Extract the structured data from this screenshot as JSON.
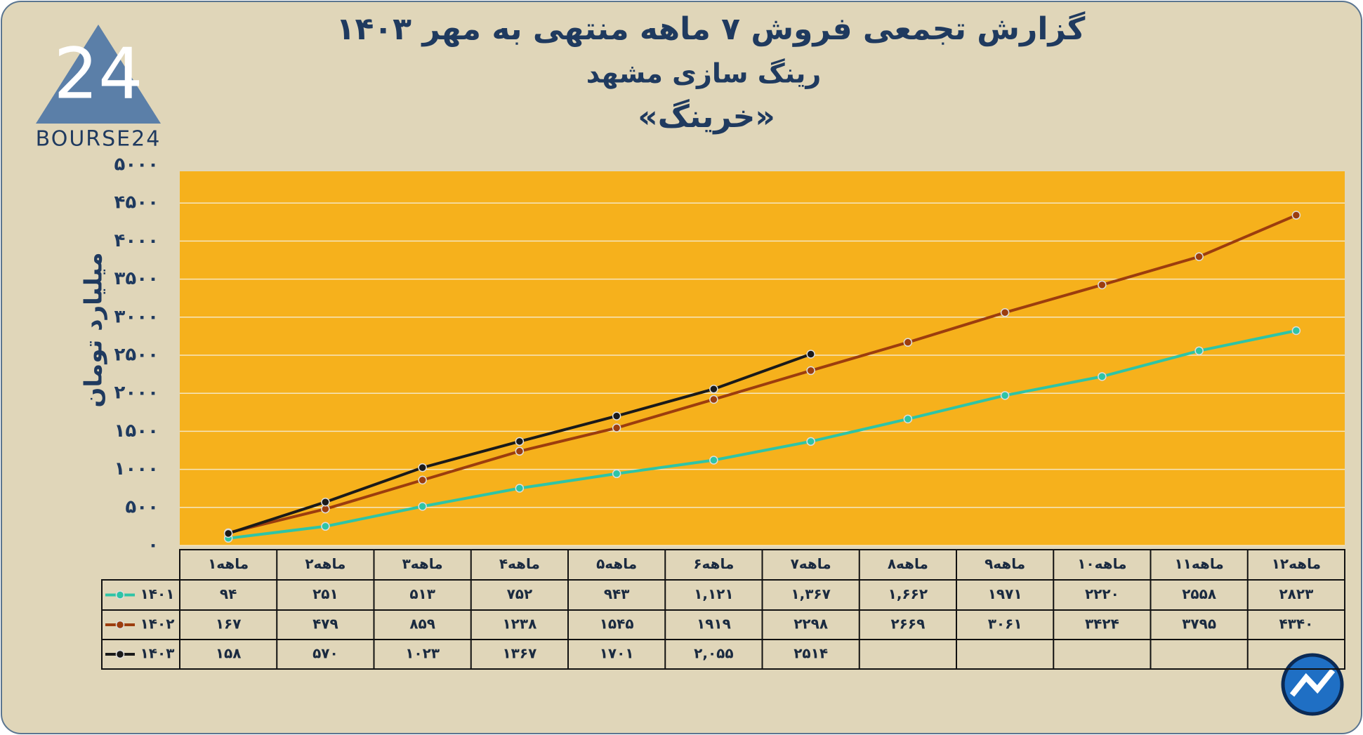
{
  "logo": {
    "mark": "24",
    "text": "BOURSE24"
  },
  "chart_data": {
    "type": "line",
    "title": "گزارش تجمعی فروش ۷ ماهه منتهی به مهر ۱۴۰۳",
    "subtitle": "رینگ سازی مشهد",
    "company": "«خرینگ»",
    "y_label": "میلیارد تومان",
    "categories": [
      "۱ماهه",
      "۲ماهه",
      "۳ماهه",
      "۴ماهه",
      "۵ماهه",
      "۶ماهه",
      "۷ماهه",
      "۸ماهه",
      "۹ماهه",
      "۱۰ماهه",
      "۱۱ماهه",
      "۱۲ماهه"
    ],
    "series": [
      {
        "name": "۱۴۰۱",
        "color": "#2ec4a6",
        "values": [
          94,
          251,
          513,
          752,
          943,
          1121,
          1367,
          1662,
          1971,
          2220,
          2558,
          2823
        ],
        "value_labels": [
          "۹۴",
          "۲۵۱",
          "۵۱۳",
          "۷۵۲",
          "۹۴۳",
          "۱,۱۲۱",
          "۱,۳۶۷",
          "۱,۶۶۲",
          "۱۹۷۱",
          "۲۲۲۰",
          "۲۵۵۸",
          "۲۸۲۳"
        ]
      },
      {
        "name": "۱۴۰۲",
        "color": "#9c3d0e",
        "values": [
          167,
          479,
          859,
          1238,
          1545,
          1919,
          2298,
          2669,
          3061,
          3424,
          3795,
          4340
        ],
        "value_labels": [
          "۱۶۷",
          "۴۷۹",
          "۸۵۹",
          "۱۲۳۸",
          "۱۵۴۵",
          "۱۹۱۹",
          "۲۲۹۸",
          "۲۶۶۹",
          "۳۰۶۱",
          "۳۴۲۴",
          "۳۷۹۵",
          "۴۳۴۰"
        ]
      },
      {
        "name": "۱۴۰۳",
        "color": "#1a1a1a",
        "values": [
          158,
          570,
          1023,
          1367,
          1701,
          2055,
          2514,
          null,
          null,
          null,
          null,
          null
        ],
        "value_labels": [
          "۱۵۸",
          "۵۷۰",
          "۱۰۲۳",
          "۱۳۶۷",
          "۱۷۰۱",
          "۲,۰۵۵",
          "۲۵۱۴",
          null,
          null,
          null,
          null,
          null
        ]
      }
    ],
    "ylim": [
      0,
      5000
    ],
    "yticks": [
      {
        "value": 0,
        "label": "۰"
      },
      {
        "value": 500,
        "label": "۵۰۰"
      },
      {
        "value": 1000,
        "label": "۱۰۰۰"
      },
      {
        "value": 1500,
        "label": "۱۵۰۰"
      },
      {
        "value": 2000,
        "label": "۲۰۰۰"
      },
      {
        "value": 2500,
        "label": "۲۵۰۰"
      },
      {
        "value": 3000,
        "label": "۳۰۰۰"
      },
      {
        "value": 3500,
        "label": "۳۵۰۰"
      },
      {
        "value": 4000,
        "label": "۴۰۰۰"
      },
      {
        "value": 4500,
        "label": "۴۵۰۰"
      },
      {
        "value": 5000,
        "label": "۵۰۰۰"
      }
    ],
    "grid": true,
    "plot_color": "#f6b11c"
  }
}
